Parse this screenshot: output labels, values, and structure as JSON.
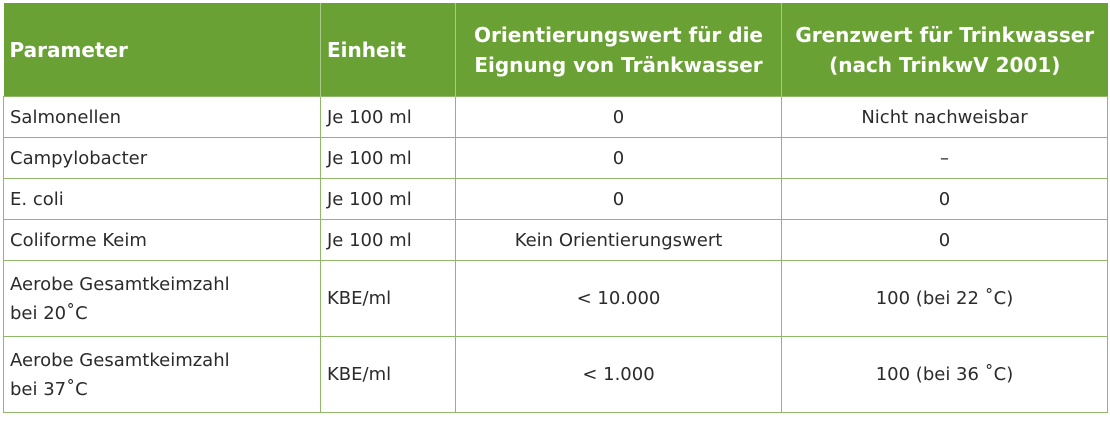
{
  "table": {
    "headers": [
      {
        "line1": "Parameter",
        "line2": ""
      },
      {
        "line1": "Einheit",
        "line2": ""
      },
      {
        "line1": "Orientierungswert für die",
        "line2": "Eignung von Tränkwasser"
      },
      {
        "line1": "Grenzwert für Trinkwasser",
        "line2": "(nach TrinkwV 2001)"
      }
    ],
    "rows": [
      {
        "param_line1": "Salmonellen",
        "param_line2": "",
        "einheit": "Je 100 ml",
        "orientierungswert": "0",
        "grenzwert": "Nicht nachweisbar"
      },
      {
        "param_line1": "Campylobacter",
        "param_line2": "",
        "einheit": "Je 100 ml",
        "orientierungswert": "0",
        "grenzwert": "–"
      },
      {
        "param_line1": "E. coli",
        "param_line2": "",
        "einheit": "Je 100 ml",
        "orientierungswert": "0",
        "grenzwert": "0"
      },
      {
        "param_line1": "Coliforme Keim",
        "param_line2": "",
        "einheit": "Je 100 ml",
        "orientierungswert": "Kein Orientierungswert",
        "grenzwert": "0"
      },
      {
        "param_line1": "Aerobe Gesamtkeimzahl",
        "param_line2": "bei 20˚C",
        "einheit": "KBE/ml",
        "orientierungswert": "< 10.000",
        "grenzwert": "100 (bei 22 ˚C)"
      },
      {
        "param_line1": "Aerobe Gesamtkeimzahl",
        "param_line2": "bei 37˚C",
        "einheit": "KBE/ml",
        "orientierungswert": "< 1.000",
        "grenzwert": "100 (bei 36 ˚C)"
      }
    ]
  },
  "colors": {
    "header_background": "#6aa135",
    "header_text": "#ffffff",
    "grid_lines": "#8fb86a",
    "body_text": "#2b2b2b"
  }
}
